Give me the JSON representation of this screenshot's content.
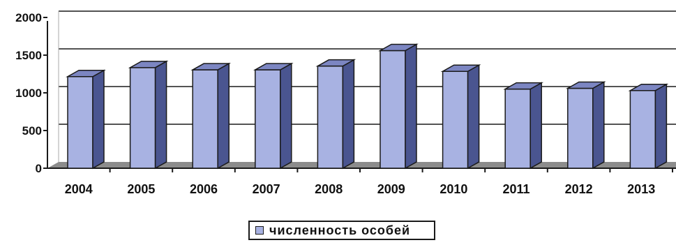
{
  "chart_data": {
    "type": "bar",
    "categories": [
      "2004",
      "2005",
      "2006",
      "2007",
      "2008",
      "2009",
      "2010",
      "2011",
      "2012",
      "2013"
    ],
    "series": [
      {
        "name": "численность особей",
        "values": [
          1215,
          1335,
          1305,
          1305,
          1355,
          1560,
          1285,
          1050,
          1060,
          1030
        ]
      }
    ],
    "ylim": [
      0,
      2000
    ],
    "yticks": [
      "0",
      "500",
      "1000",
      "1500",
      "2000"
    ],
    "grid": true,
    "legend_position": "bottom",
    "colors": {
      "bar_front": "#a8b2e2",
      "bar_side": "#4a5590",
      "bar_top": "#7c86c2",
      "floor": "#8c8c8c"
    }
  }
}
